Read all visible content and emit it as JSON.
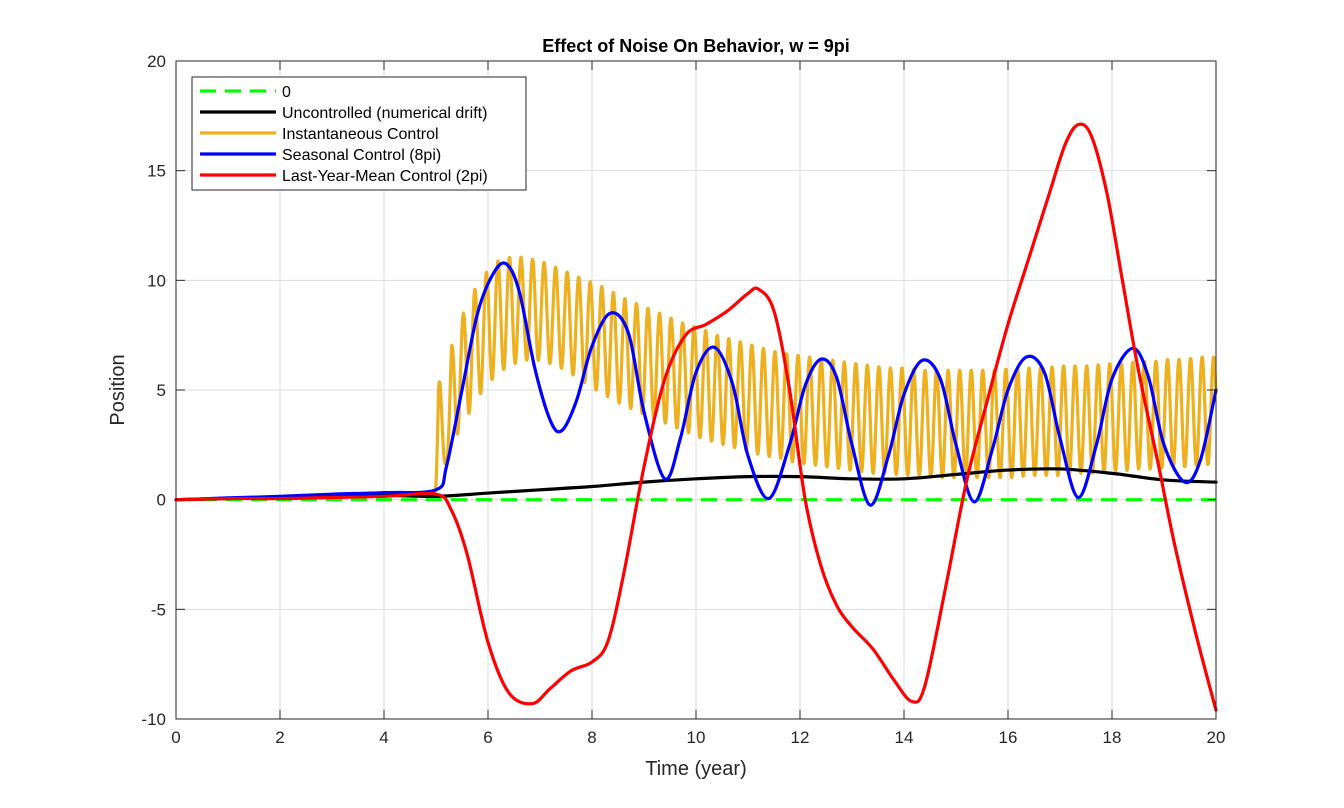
{
  "chart_data": {
    "type": "line",
    "title": "Effect of Noise On Behavior, w = 9pi",
    "xlabel": "Time (year)",
    "ylabel": "Position",
    "xlim": [
      0,
      20
    ],
    "ylim": [
      -10,
      20
    ],
    "xticks": [
      0,
      2,
      4,
      6,
      8,
      10,
      12,
      14,
      16,
      18,
      20
    ],
    "yticks": [
      -10,
      -5,
      0,
      5,
      10,
      15,
      20
    ],
    "xtick_labels": [
      "0",
      "2",
      "4",
      "6",
      "8",
      "10",
      "12",
      "14",
      "16",
      "18",
      "20"
    ],
    "ytick_labels": [
      "-10",
      "-5",
      "0",
      "5",
      "10",
      "15",
      "20"
    ],
    "grid": true,
    "legend_position": "top-left",
    "series": [
      {
        "name": "0",
        "color": "#00ff00",
        "style": "dashed",
        "x": [
          0,
          20
        ],
        "y": [
          0,
          0
        ]
      },
      {
        "name": "Uncontrolled (numerical drift)",
        "color": "#000000",
        "style": "solid",
        "x": [
          0,
          1,
          2,
          3,
          4,
          5,
          6,
          7,
          8,
          9,
          10,
          11,
          12,
          13,
          14,
          15,
          16,
          17,
          18,
          19,
          20
        ],
        "y": [
          0,
          0.05,
          0.1,
          0.15,
          0.2,
          0.15,
          0.3,
          0.45,
          0.6,
          0.8,
          0.95,
          1.05,
          1.05,
          0.95,
          0.95,
          1.15,
          1.35,
          1.4,
          1.2,
          0.9,
          0.8
        ]
      },
      {
        "name": "Instantaneous Control",
        "color": "#edb120",
        "style": "solid",
        "x": [
          0,
          1,
          2,
          3,
          4,
          4.95,
          5.0,
          5.05,
          5.2,
          5.3,
          5.6,
          5.9,
          6.2,
          6.5,
          6.8,
          7.1,
          7.4,
          7.7,
          8.0,
          8.3,
          8.6,
          8.9,
          9.2,
          9.5,
          9.8,
          10.1,
          10.4,
          10.7,
          11.0,
          11.3,
          11.6,
          11.9,
          12.2,
          12.5,
          12.8,
          13.1,
          13.4,
          13.7,
          14.0,
          14.3,
          14.6,
          14.9,
          15.2,
          15.5,
          15.8,
          16.1,
          16.4,
          16.7,
          17.0,
          17.3,
          17.6,
          17.9,
          18.2,
          18.5,
          18.8,
          19.1,
          19.4,
          19.7,
          20.0
        ],
        "y": [
          0,
          0.05,
          0.1,
          0.15,
          0.2,
          0.2,
          3.0,
          6.0,
          2.0,
          7.0,
          9.0,
          10.2,
          10.9,
          11.1,
          11.0,
          10.8,
          10.5,
          10.2,
          9.9,
          9.6,
          9.2,
          8.9,
          8.6,
          8.3,
          8.0,
          7.8,
          7.5,
          7.3,
          7.1,
          6.9,
          6.7,
          6.6,
          6.5,
          6.4,
          6.3,
          6.2,
          6.1,
          6.0,
          6.0,
          5.9,
          5.9,
          5.9,
          5.9,
          5.9,
          5.9,
          6.0,
          6.0,
          6.0,
          6.1,
          6.1,
          6.1,
          6.2,
          6.2,
          6.3,
          6.3,
          6.4,
          6.4,
          6.5,
          6.5
        ],
        "lower_envelope": [
          0,
          0.05,
          0.1,
          0.15,
          0.2,
          0.2,
          0.3,
          1.0,
          1.7,
          2.5,
          3.8,
          5.0,
          5.8,
          6.2,
          6.4,
          6.3,
          6.0,
          5.6,
          5.1,
          4.7,
          4.3,
          4.0,
          3.7,
          3.4,
          3.1,
          2.8,
          2.6,
          2.4,
          2.2,
          2.0,
          1.9,
          1.7,
          1.6,
          1.5,
          1.4,
          1.3,
          1.2,
          1.2,
          1.1,
          1.1,
          1.0,
          1.0,
          1.0,
          1.0,
          1.0,
          1.0,
          1.1,
          1.1,
          1.1,
          1.2,
          1.2,
          1.3,
          1.3,
          1.4,
          1.4,
          1.5,
          1.5,
          1.6,
          1.6
        ],
        "oscillation_period": 0.222
      },
      {
        "name": "Seasonal Control (8pi)",
        "color": "#0000ff",
        "style": "solid",
        "x": [
          0,
          1,
          2,
          3,
          4,
          5,
          5.2,
          5.5,
          5.8,
          6.1,
          6.35,
          6.6,
          6.9,
          7.2,
          7.42,
          7.7,
          8.0,
          8.35,
          8.7,
          9.0,
          9.4,
          9.7,
          10.0,
          10.35,
          10.7,
          11.0,
          11.4,
          11.8,
          12.1,
          12.4,
          12.7,
          13.0,
          13.35,
          13.7,
          14.0,
          14.35,
          14.7,
          15.0,
          15.35,
          15.7,
          16.0,
          16.35,
          16.7,
          17.0,
          17.35,
          17.7,
          18.0,
          18.4,
          18.7,
          19.0,
          19.4,
          19.7,
          20.0
        ],
        "y": [
          0,
          0.08,
          0.15,
          0.25,
          0.32,
          0.45,
          1.5,
          5.0,
          8.5,
          10.3,
          10.75,
          9.5,
          6.0,
          3.6,
          3.15,
          4.5,
          7.0,
          8.5,
          7.6,
          4.0,
          0.95,
          2.8,
          5.8,
          6.95,
          5.3,
          2.0,
          0.05,
          2.5,
          5.2,
          6.4,
          5.6,
          2.5,
          -0.25,
          2.0,
          4.8,
          6.35,
          5.5,
          2.5,
          -0.1,
          2.3,
          5.0,
          6.5,
          5.8,
          2.8,
          0.1,
          2.5,
          5.5,
          6.9,
          5.6,
          2.5,
          0.8,
          1.8,
          5.0
        ]
      },
      {
        "name": "Last-Year-Mean Control (2pi)",
        "color": "#ff0000",
        "style": "solid",
        "x": [
          0,
          1,
          2,
          3,
          4,
          5,
          5.3,
          5.6,
          6.0,
          6.4,
          6.85,
          7.2,
          7.6,
          8.0,
          8.3,
          8.6,
          9.0,
          9.4,
          9.8,
          10.2,
          10.6,
          11.0,
          11.2,
          11.5,
          11.8,
          12.1,
          12.4,
          12.7,
          13.0,
          13.4,
          13.8,
          14.15,
          14.4,
          14.8,
          15.2,
          15.6,
          16.0,
          16.4,
          16.8,
          17.1,
          17.35,
          17.6,
          17.9,
          18.2,
          18.5,
          18.9,
          19.2,
          19.6,
          20.0
        ],
        "y": [
          0,
          0.05,
          0.05,
          0.1,
          0.15,
          0.25,
          -0.5,
          -2.5,
          -6.5,
          -8.8,
          -9.3,
          -8.6,
          -7.8,
          -7.4,
          -6.5,
          -3.5,
          1.5,
          5.5,
          7.5,
          8.0,
          8.6,
          9.4,
          9.6,
          8.6,
          5.0,
          0.0,
          -3.0,
          -4.8,
          -5.8,
          -6.8,
          -8.2,
          -9.2,
          -8.5,
          -4.0,
          0.8,
          4.5,
          8.0,
          11.0,
          14.0,
          16.2,
          17.1,
          16.6,
          14.0,
          10.0,
          6.0,
          1.5,
          -2.0,
          -6.0,
          -9.6
        ]
      }
    ]
  }
}
